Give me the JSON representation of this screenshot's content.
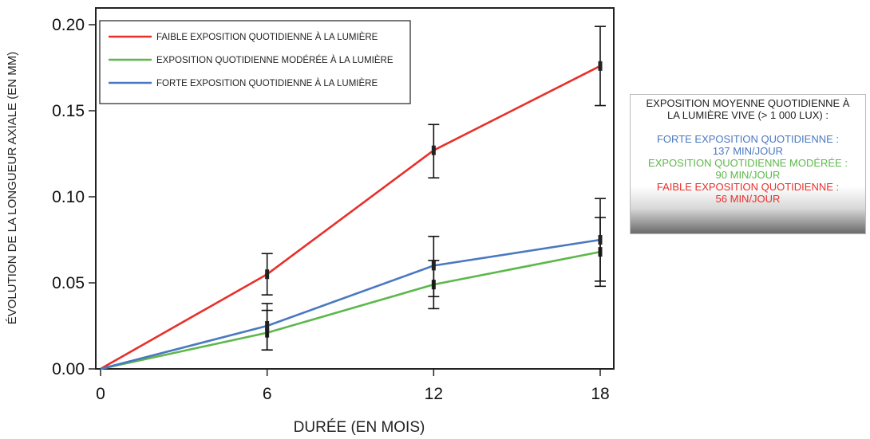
{
  "chart_data": {
    "type": "line",
    "x": [
      0,
      6,
      12,
      18
    ],
    "xlabel": "DURÉE (EN MOIS)",
    "ylabel": "ÉVOLUTION DE LA LONGUEUR AXIALE (EN MM)",
    "xlim": [
      0,
      18
    ],
    "ylim": [
      0,
      0.2
    ],
    "x_ticks": [
      "0",
      "6",
      "12",
      "18"
    ],
    "y_ticks": [
      "0.00",
      "0.05",
      "0.10",
      "0.15",
      "0.20"
    ],
    "grid": false,
    "legend_position": "top-left",
    "series": [
      {
        "name": "FAIBLE EXPOSITION QUOTIDIENNE À LA LUMIÈRE",
        "color": "#e8302a",
        "values": [
          0,
          0.055,
          0.127,
          0.176
        ],
        "error_low": [
          0,
          0.043,
          0.111,
          0.153
        ],
        "error_high": [
          0,
          0.067,
          0.142,
          0.199
        ]
      },
      {
        "name": "EXPOSITION QUOTIDIENNE MODÉRÉE À LA LUMIÈRE",
        "color": "#5cb84a",
        "values": [
          0,
          0.021,
          0.049,
          0.068
        ],
        "error_low": [
          0,
          0.011,
          0.035,
          0.048
        ],
        "error_high": [
          0,
          0.034,
          0.063,
          0.088
        ]
      },
      {
        "name": "FORTE EXPOSITION QUOTIDIENNE À LA LUMIÈRE",
        "color": "#4a78c0",
        "values": [
          0,
          0.025,
          0.06,
          0.075
        ],
        "error_low": [
          0,
          0.011,
          0.042,
          0.051
        ],
        "error_high": [
          0,
          0.038,
          0.077,
          0.099
        ]
      }
    ]
  },
  "side_box": {
    "heading_1": "EXPOSITION MOYENNE QUOTIDIENNE À",
    "heading_2": "LA LUMIÈRE VIVE (> 1 000 LUX) :",
    "entries": [
      {
        "line1": "FORTE EXPOSITION QUOTIDIENNE :",
        "line2": "137 MIN/JOUR",
        "color": "#4a78c0"
      },
      {
        "line1": "EXPOSITION QUOTIDIENNE MODÉRÉE :",
        "line2": "90 MIN/JOUR",
        "color": "#5cb84a"
      },
      {
        "line1": "FAIBLE EXPOSITION QUOTIDIENNE :",
        "line2": "56 MIN/JOUR",
        "color": "#e8302a"
      }
    ]
  }
}
